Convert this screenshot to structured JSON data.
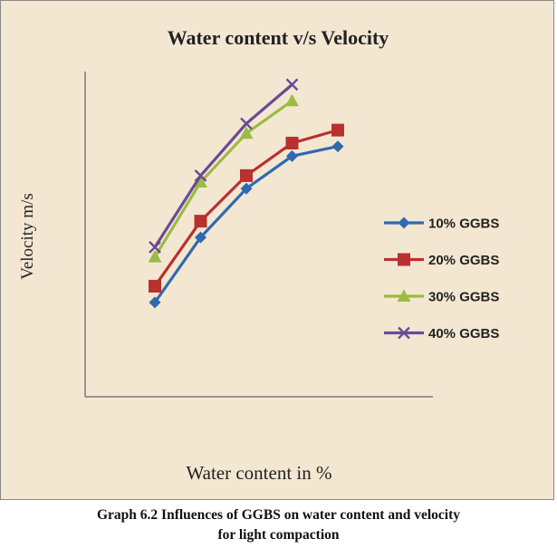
{
  "caption": {
    "line1": "Graph 6.2 Influences of GGBS on water content and velocity",
    "line2": "for light compaction"
  },
  "chart_data": {
    "type": "line",
    "title": "Water content v/s Velocity",
    "xlabel": "Water content in %",
    "ylabel": "Velocity  m/s",
    "grid": false,
    "legend_position": "right",
    "x": [
      1,
      2,
      3,
      4,
      5
    ],
    "ylim": [
      0,
      100
    ],
    "series": [
      {
        "name": "10% GGBS",
        "color": "#2e6ab0",
        "marker": "diamond",
        "x": [
          1,
          2,
          3,
          4,
          5
        ],
        "values": [
          29,
          49,
          64,
          74,
          77
        ]
      },
      {
        "name": "20% GGBS",
        "color": "#b8312f",
        "marker": "square",
        "x": [
          1,
          2,
          3,
          4,
          5
        ],
        "values": [
          34,
          54,
          68,
          78,
          82
        ]
      },
      {
        "name": "30% GGBS",
        "color": "#9bbb43",
        "marker": "triangle",
        "x": [
          1,
          2,
          3,
          4
        ],
        "values": [
          43,
          66,
          81,
          91
        ]
      },
      {
        "name": "40% GGBS",
        "color": "#6b4a95",
        "marker": "x",
        "x": [
          1,
          2,
          3,
          4
        ],
        "values": [
          46,
          68,
          84,
          96
        ]
      }
    ]
  }
}
